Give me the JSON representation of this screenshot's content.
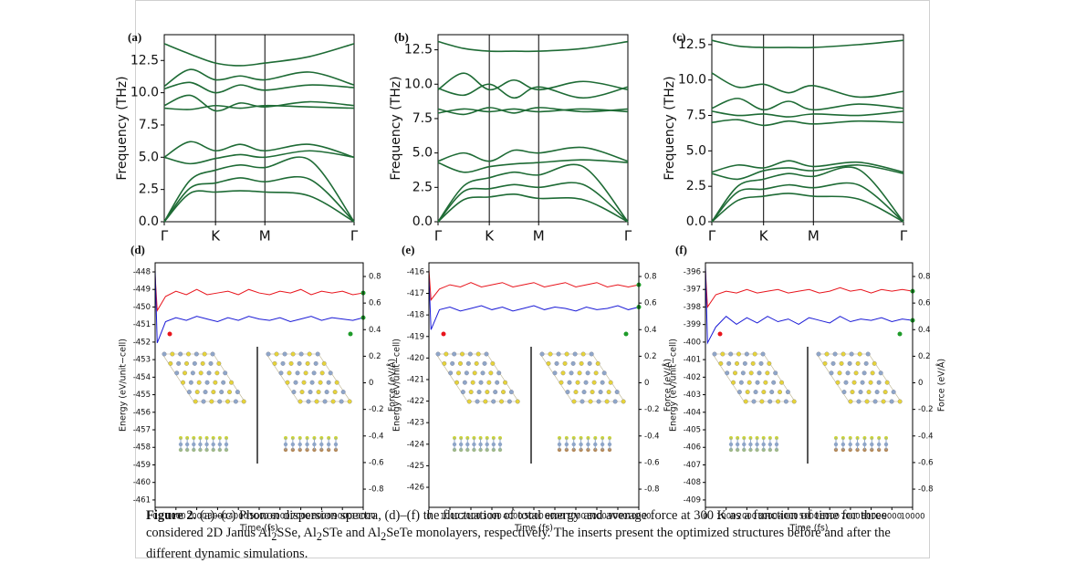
{
  "chart_data": [
    {
      "type": "phonon",
      "panel_label": "(a)",
      "ylabel": "Frequency (THz)",
      "color": "#1e6b35",
      "x": [
        0,
        0.135,
        0.27,
        0.4,
        0.53,
        0.765,
        1
      ],
      "xlim": [
        0,
        1
      ],
      "xticks": [
        {
          "value": 0,
          "label": "Γ"
        },
        {
          "value": 0.27,
          "label": "K"
        },
        {
          "value": 0.53,
          "label": "M"
        },
        {
          "value": 1,
          "label": "Γ"
        }
      ],
      "ylim": [
        0,
        14.5
      ],
      "yticks": [
        {
          "value": 0,
          "label": "0.0"
        },
        2.5,
        {
          "value": 5,
          "label": "5.0"
        },
        7.5,
        {
          "value": 10,
          "label": "10.0"
        },
        12.5
      ],
      "series": [
        {
          "values": [
            0,
            2.2,
            2.3,
            2.4,
            2.3,
            2.0,
            0
          ]
        },
        {
          "values": [
            0,
            2.6,
            3.0,
            3.4,
            3.1,
            3.3,
            0
          ]
        },
        {
          "values": [
            0,
            3.2,
            4.0,
            4.4,
            4.2,
            4.8,
            0
          ]
        },
        {
          "values": [
            5.0,
            4.5,
            4.9,
            5.2,
            5.0,
            5.5,
            5.0
          ]
        },
        {
          "values": [
            5.0,
            6.2,
            5.5,
            6.0,
            5.5,
            6.0,
            5.0
          ]
        },
        {
          "values": [
            8.8,
            8.7,
            9.0,
            8.8,
            9.0,
            8.9,
            8.8
          ]
        },
        {
          "values": [
            9.0,
            9.8,
            8.6,
            9.2,
            8.9,
            9.3,
            9.0
          ]
        },
        {
          "values": [
            10.3,
            10.8,
            10.0,
            10.6,
            10.2,
            10.6,
            10.4
          ]
        },
        {
          "values": [
            10.5,
            11.8,
            11.0,
            11.3,
            11.0,
            11.6,
            10.6
          ]
        },
        {
          "values": [
            13.8,
            13.0,
            12.3,
            12.1,
            12.3,
            12.8,
            13.8
          ]
        }
      ]
    },
    {
      "type": "phonon",
      "panel_label": "(b)",
      "ylabel": "Frequency (THz)",
      "color": "#1e6b35",
      "x": [
        0,
        0.135,
        0.27,
        0.4,
        0.53,
        0.765,
        1
      ],
      "xlim": [
        0,
        1
      ],
      "xticks": [
        {
          "value": 0,
          "label": "Γ"
        },
        {
          "value": 0.27,
          "label": "K"
        },
        {
          "value": 0.53,
          "label": "M"
        },
        {
          "value": 1,
          "label": "Γ"
        }
      ],
      "ylim": [
        0,
        13.6
      ],
      "yticks": [
        {
          "value": 0,
          "label": "0.0"
        },
        2.5,
        {
          "value": 5,
          "label": "5.0"
        },
        7.5,
        {
          "value": 10,
          "label": "10.0"
        },
        12.5
      ],
      "series": [
        {
          "values": [
            0,
            1.6,
            1.8,
            2.0,
            1.7,
            1.6,
            0
          ]
        },
        {
          "values": [
            0,
            2.2,
            2.4,
            2.7,
            2.5,
            2.7,
            0
          ]
        },
        {
          "values": [
            0,
            2.6,
            3.2,
            3.6,
            3.4,
            4.0,
            0
          ]
        },
        {
          "values": [
            4.3,
            3.6,
            4.0,
            4.2,
            4.3,
            4.5,
            4.3
          ]
        },
        {
          "values": [
            4.4,
            5.0,
            4.4,
            5.2,
            5.0,
            5.4,
            4.4
          ]
        },
        {
          "values": [
            7.9,
            8.2,
            8.0,
            8.2,
            8.0,
            8.2,
            8.0
          ]
        },
        {
          "values": [
            8.2,
            7.8,
            8.3,
            7.9,
            8.3,
            8.0,
            8.2
          ]
        },
        {
          "values": [
            9.6,
            10.8,
            9.6,
            10.3,
            9.6,
            10.2,
            9.6
          ]
        },
        {
          "values": [
            9.7,
            9.2,
            10.0,
            9.0,
            9.8,
            9.0,
            9.8
          ]
        },
        {
          "values": [
            13.1,
            12.6,
            12.4,
            12.4,
            12.4,
            12.6,
            13.1
          ]
        }
      ]
    },
    {
      "type": "phonon",
      "panel_label": "(c)",
      "ylabel": "Frequency (THz)",
      "color": "#1e6b35",
      "x": [
        0,
        0.135,
        0.27,
        0.4,
        0.53,
        0.765,
        1
      ],
      "xlim": [
        0,
        1
      ],
      "xticks": [
        {
          "value": 0,
          "label": "Γ"
        },
        {
          "value": 0.27,
          "label": "K"
        },
        {
          "value": 0.53,
          "label": "M"
        },
        {
          "value": 1,
          "label": "Γ"
        }
      ],
      "ylim": [
        0,
        13.2
      ],
      "yticks": [
        {
          "value": 0,
          "label": "0.0"
        },
        2.5,
        {
          "value": 5,
          "label": "5.0"
        },
        7.5,
        {
          "value": 10,
          "label": "10.0"
        },
        12.5
      ],
      "series": [
        {
          "values": [
            0,
            1.5,
            1.8,
            2.0,
            1.8,
            1.6,
            0
          ]
        },
        {
          "values": [
            0,
            2.1,
            2.3,
            2.6,
            2.4,
            2.6,
            0
          ]
        },
        {
          "values": [
            0,
            2.5,
            3.0,
            3.4,
            3.2,
            3.7,
            0
          ]
        },
        {
          "values": [
            3.4,
            3.0,
            3.6,
            3.8,
            3.6,
            4.0,
            3.4
          ]
        },
        {
          "values": [
            3.5,
            4.0,
            3.8,
            4.3,
            3.9,
            4.2,
            3.5
          ]
        },
        {
          "values": [
            7.0,
            7.2,
            6.8,
            7.1,
            6.9,
            7.1,
            7.0
          ]
        },
        {
          "values": [
            7.8,
            7.5,
            7.6,
            7.4,
            7.6,
            7.5,
            7.8
          ]
        },
        {
          "values": [
            8.0,
            8.7,
            7.9,
            8.5,
            7.9,
            8.3,
            8.0
          ]
        },
        {
          "values": [
            10.5,
            9.5,
            9.7,
            9.1,
            9.6,
            8.8,
            9.2
          ]
        },
        {
          "values": [
            12.8,
            12.4,
            12.3,
            12.3,
            12.3,
            12.5,
            12.8
          ]
        }
      ]
    },
    {
      "type": "md",
      "panel_label": "(d)",
      "xlabel": "Time (fs)",
      "ylabel": "Energy (eV/unit−cell)",
      "y2label": "Force (eV/Å)",
      "x": [
        0,
        100,
        500,
        1000,
        1500,
        2000,
        2500,
        3000,
        3500,
        4000,
        4500,
        5000,
        5500,
        6000,
        6500,
        7000,
        7500,
        8000,
        8500,
        9000,
        9500,
        10000
      ],
      "xlim": [
        0,
        10000
      ],
      "xticks": [
        0,
        1000,
        2000,
        3000,
        4000,
        5000,
        6000,
        7000,
        8000,
        9000,
        10000
      ],
      "ylim": [
        -461.42,
        -447.48
      ],
      "yticks": [
        -448,
        -449,
        -450,
        -451,
        -452,
        -453,
        -454,
        -455,
        -456,
        -457,
        -458,
        -459,
        -460,
        -461
      ],
      "y2lim": [
        -0.937,
        0.903
      ],
      "y2ticks": [
        0.8,
        0.6,
        0.4,
        0.2,
        0,
        -0.2,
        -0.4,
        -0.6,
        -0.8
      ],
      "series": [
        {
          "color": "#e8141c",
          "values": [
            -448.2,
            -450.2,
            -449.4,
            -449.1,
            -449.3,
            -449.0,
            -449.3,
            -449.2,
            -449.1,
            -449.3,
            -449.0,
            -449.2,
            -449.3,
            -449.1,
            -449.2,
            -449.0,
            -449.3,
            -449.1,
            -449.2,
            -449.1,
            -449.3,
            -449.2
          ]
        },
        {
          "color": "#1a1ad6",
          "axis": "y2",
          "values": [
            0.85,
            0.3,
            0.46,
            0.49,
            0.47,
            0.5,
            0.48,
            0.46,
            0.49,
            0.47,
            0.5,
            0.48,
            0.47,
            0.49,
            0.46,
            0.48,
            0.5,
            0.47,
            0.49,
            0.48,
            0.47,
            0.49
          ]
        }
      ]
    },
    {
      "type": "md",
      "panel_label": "(e)",
      "xlabel": "Time (fs)",
      "ylabel": "Energy (eV/unit−cell)",
      "y2label": "Force (eV/Å)",
      "x": [
        0,
        100,
        500,
        1000,
        1500,
        2000,
        2500,
        3000,
        3500,
        4000,
        4500,
        5000,
        5500,
        6000,
        6500,
        7000,
        7500,
        8000,
        8500,
        9000,
        9500,
        10000
      ],
      "xlim": [
        0,
        10000
      ],
      "xticks": [
        0,
        1000,
        2000,
        3000,
        4000,
        5000,
        6000,
        7000,
        8000,
        9000,
        10000
      ],
      "ylim": [
        -426.93,
        -415.58
      ],
      "yticks": [
        -416,
        -417,
        -418,
        -419,
        -420,
        -421,
        -422,
        -423,
        -424,
        -425,
        -426
      ],
      "y2lim": [
        -0.937,
        0.903
      ],
      "y2ticks": [
        0.8,
        0.6,
        0.4,
        0.2,
        0,
        -0.2,
        -0.4,
        -0.6,
        -0.8
      ],
      "series": [
        {
          "color": "#e8141c",
          "values": [
            -415.9,
            -417.3,
            -416.8,
            -416.6,
            -416.7,
            -416.5,
            -416.7,
            -416.6,
            -416.5,
            -416.7,
            -416.6,
            -416.5,
            -416.7,
            -416.6,
            -416.5,
            -416.7,
            -416.6,
            -416.5,
            -416.7,
            -416.6,
            -416.7,
            -416.6
          ]
        },
        {
          "color": "#1a1ad6",
          "axis": "y2",
          "values": [
            0.8,
            0.4,
            0.55,
            0.57,
            0.54,
            0.56,
            0.58,
            0.55,
            0.57,
            0.54,
            0.56,
            0.58,
            0.55,
            0.57,
            0.56,
            0.54,
            0.57,
            0.55,
            0.56,
            0.58,
            0.55,
            0.57
          ]
        }
      ]
    },
    {
      "type": "md",
      "panel_label": "(f)",
      "xlabel": "Time (fs)",
      "ylabel": "Energy (eV/unit−cell)",
      "y2label": "Force (eV/Å)",
      "x": [
        0,
        100,
        500,
        1000,
        1500,
        2000,
        2500,
        3000,
        3500,
        4000,
        4500,
        5000,
        5500,
        6000,
        6500,
        7000,
        7500,
        8000,
        8500,
        9000,
        9500,
        10000
      ],
      "xlim": [
        0,
        10000
      ],
      "xticks": [
        0,
        1000,
        2000,
        3000,
        4000,
        5000,
        6000,
        7000,
        8000,
        9000,
        10000
      ],
      "ylim": [
        -409.42,
        -395.48
      ],
      "yticks": [
        -396,
        -397,
        -398,
        -399,
        -400,
        -401,
        -402,
        -403,
        -404,
        -405,
        -406,
        -407,
        -408,
        -409
      ],
      "y2lim": [
        -0.937,
        0.903
      ],
      "y2ticks": [
        0.8,
        0.6,
        0.4,
        0.2,
        0,
        -0.2,
        -0.4,
        -0.6,
        -0.8
      ],
      "series": [
        {
          "color": "#e8141c",
          "values": [
            -395.9,
            -398.0,
            -397.3,
            -397.1,
            -397.2,
            -397.0,
            -397.2,
            -397.1,
            -397.0,
            -397.2,
            -397.1,
            -397.0,
            -397.2,
            -397.1,
            -396.9,
            -397.1,
            -397.0,
            -397.2,
            -397.0,
            -397.1,
            -397.0,
            -397.1
          ]
        },
        {
          "color": "#1a1ad6",
          "axis": "y2",
          "values": [
            0.88,
            0.3,
            0.42,
            0.5,
            0.44,
            0.49,
            0.45,
            0.5,
            0.46,
            0.48,
            0.44,
            0.49,
            0.47,
            0.45,
            0.5,
            0.46,
            0.48,
            0.47,
            0.49,
            0.46,
            0.48,
            0.47
          ]
        }
      ]
    }
  ],
  "caption": {
    "label": "Figure 2.",
    "runs": [
      {
        "text": " (a)–(c) Phonon dispersion spectra, (d)–(f) the fluctuation of total energy and average force at 300 K as a function of time for three considered 2D Janus Al"
      },
      {
        "text": "2",
        "sub": true
      },
      {
        "text": "SSe, Al"
      },
      {
        "text": "2",
        "sub": true
      },
      {
        "text": "STe and Al"
      },
      {
        "text": "2",
        "sub": true
      },
      {
        "text": "SeTe monolayers, respectively. The inserts present the optimized structures before and after the different dynamic simulations."
      }
    ]
  }
}
